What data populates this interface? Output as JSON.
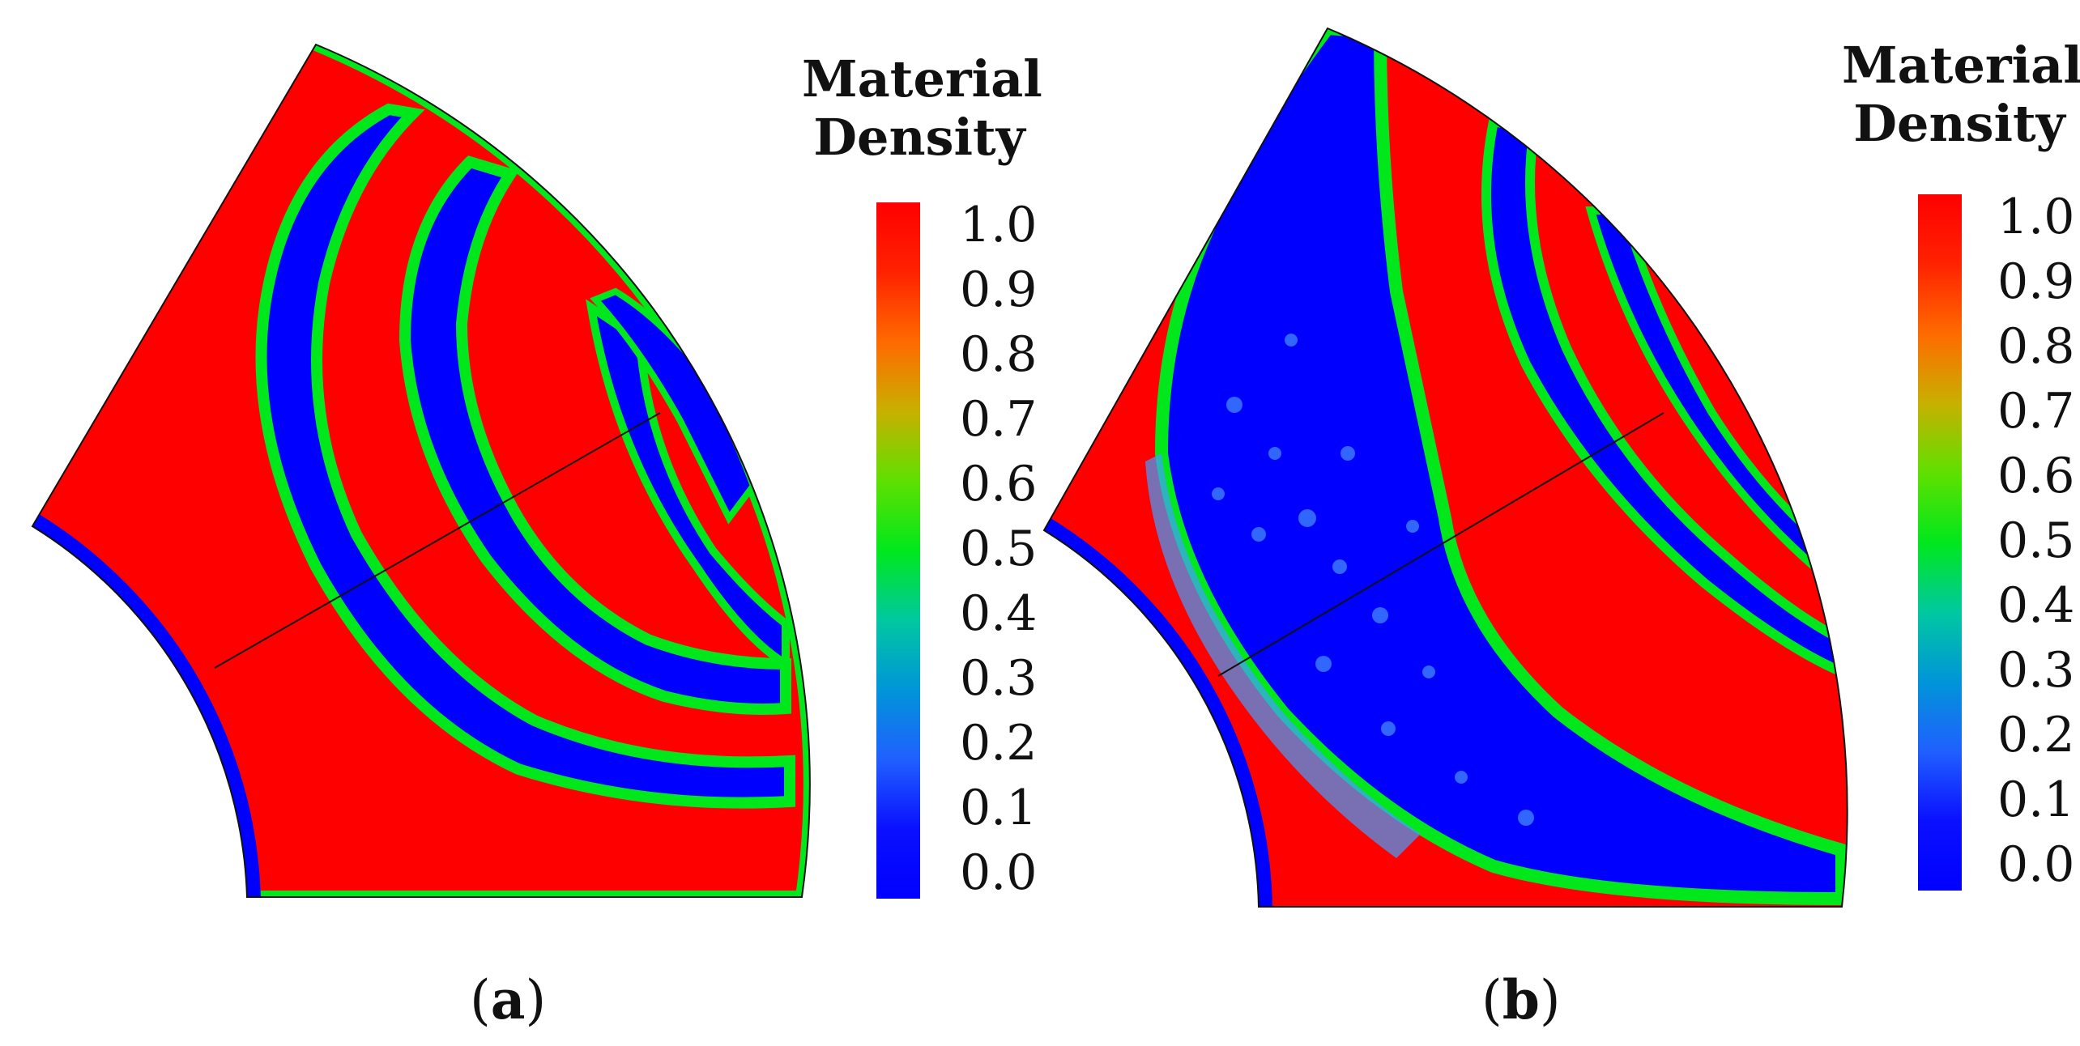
{
  "figure": {
    "legend": {
      "title_line1": "Material",
      "title_line2": "Density",
      "ticks": [
        "1.0",
        "0.9",
        "0.8",
        "0.7",
        "0.6",
        "0.5",
        "0.4",
        "0.3",
        "0.2",
        "0.1",
        "0.0"
      ],
      "high_color": "#ff0000",
      "mid_color": "#00e81c",
      "low_color": "#0000ff"
    },
    "panels": [
      {
        "label": "a"
      },
      {
        "label": "b"
      }
    ]
  }
}
